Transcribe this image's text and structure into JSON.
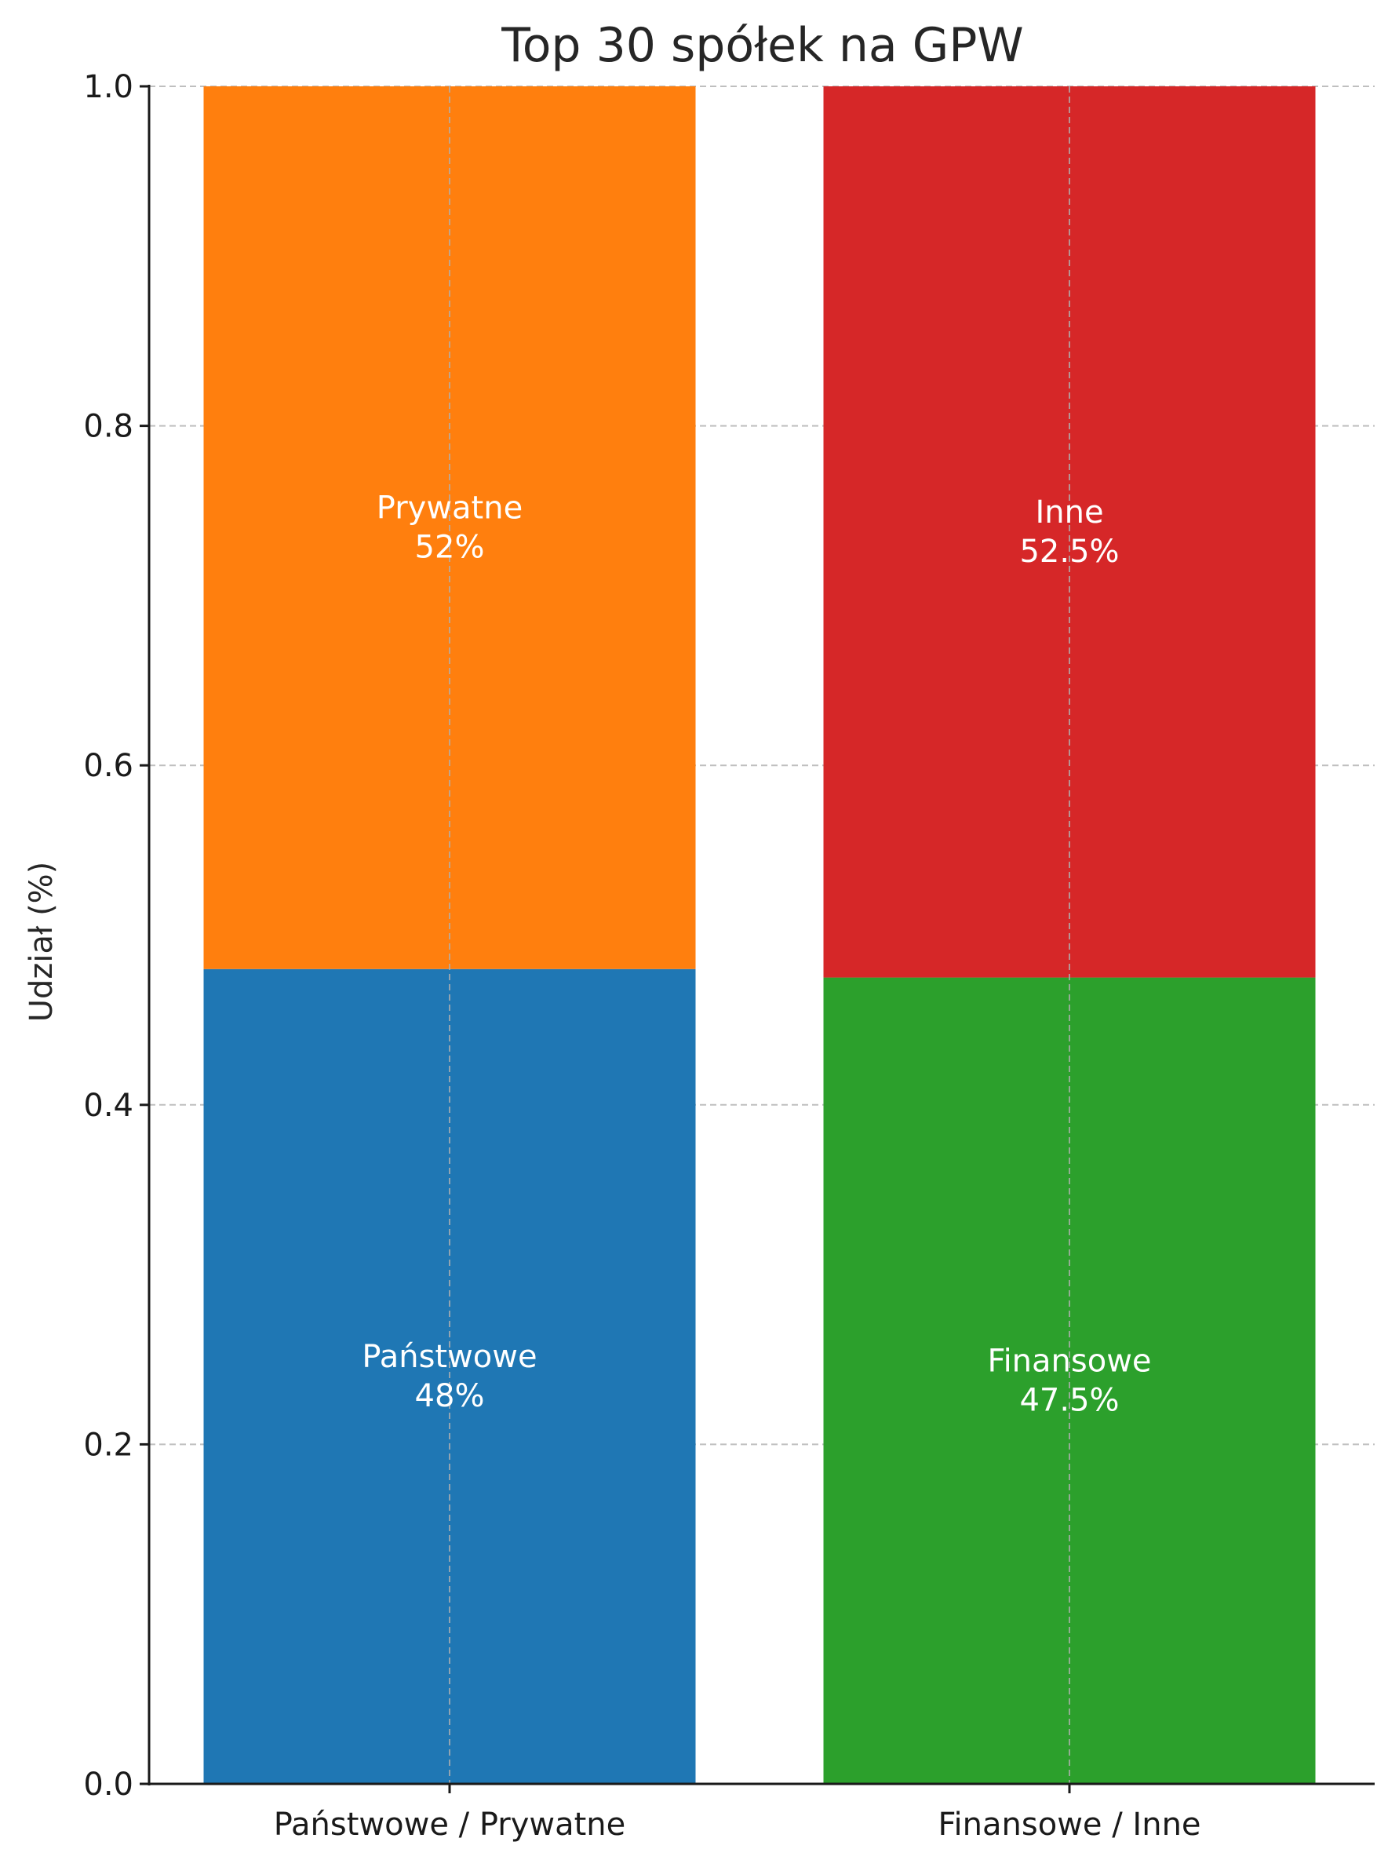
{
  "chart_data": {
    "type": "bar",
    "stacked": true,
    "title": "Top 30 spółek na GPW",
    "xlabel": "",
    "ylabel": "Udział (%)",
    "ylim": [
      0,
      1.0
    ],
    "yticks": [
      "0.0",
      "0.2",
      "0.4",
      "0.6",
      "0.8",
      "1.0"
    ],
    "ytick_values": [
      0,
      0.2,
      0.4,
      0.6,
      0.8,
      1.0
    ],
    "grid": true,
    "categories": [
      "Państwowe / Prywatne",
      "Finansowe / Inne"
    ],
    "segments": [
      [
        {
          "name": "Państwowe",
          "value": 0.48,
          "label": "48%",
          "color": "#1f77b4"
        },
        {
          "name": "Prywatne",
          "value": 0.52,
          "label": "52%",
          "color": "#ff7f0e"
        }
      ],
      [
        {
          "name": "Finansowe",
          "value": 0.475,
          "label": "47.5%",
          "color": "#2ca02c"
        },
        {
          "name": "Inne",
          "value": 0.525,
          "label": "52.5%",
          "color": "#d62728"
        }
      ]
    ]
  }
}
